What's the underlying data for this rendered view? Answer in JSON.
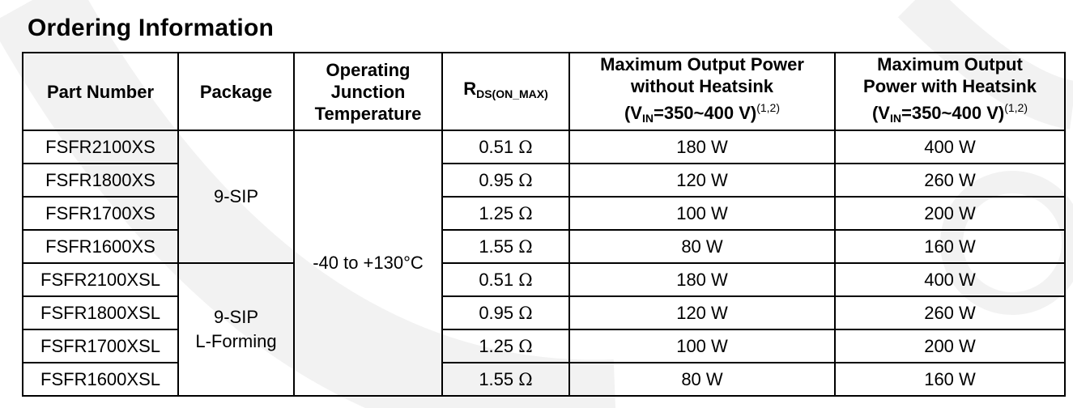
{
  "title": "Ordering Information",
  "columns": {
    "part_number": "Part Number",
    "package": "Package",
    "temperature": [
      "Operating",
      "Junction",
      "Temperature"
    ],
    "rds": {
      "main": "R",
      "sub": "DS(ON_MAX)"
    },
    "power_no_heatsink": {
      "line1": "Maximum Output Power",
      "line2": "without Heatsink",
      "vin_open": "(V",
      "vin_sub": "IN",
      "vin_rest": "=350~400 V)",
      "note": "(1,2)"
    },
    "power_heatsink": {
      "line1": "Maximum Output",
      "line2": "Power with Heatsink",
      "vin_open": "(V",
      "vin_sub": "IN",
      "vin_rest": "=350~400 V)",
      "note": "(1,2)"
    }
  },
  "packages": [
    {
      "lines": [
        "9-SIP"
      ]
    },
    {
      "lines": [
        "9-SIP",
        "L-Forming"
      ]
    }
  ],
  "temperature_range": "-40 to +130°C",
  "rows": [
    {
      "part": "FSFR2100XS",
      "rds": "0.51",
      "unit": "Ω",
      "p_no_hs": "180 W",
      "p_hs": "400 W"
    },
    {
      "part": "FSFR1800XS",
      "rds": "0.95",
      "unit": "Ω",
      "p_no_hs": "120 W",
      "p_hs": "260 W"
    },
    {
      "part": "FSFR1700XS",
      "rds": "1.25",
      "unit": "Ω",
      "p_no_hs": "100 W",
      "p_hs": "200 W"
    },
    {
      "part": "FSFR1600XS",
      "rds": "1.55",
      "unit": "Ω",
      "p_no_hs": "80 W",
      "p_hs": "160 W"
    },
    {
      "part": "FSFR2100XSL",
      "rds": "0.51",
      "unit": "Ω",
      "p_no_hs": "180 W",
      "p_hs": "400 W"
    },
    {
      "part": "FSFR1800XSL",
      "rds": "0.95",
      "unit": "Ω",
      "p_no_hs": "120 W",
      "p_hs": "260 W"
    },
    {
      "part": "FSFR1700XSL",
      "rds": "1.25",
      "unit": "Ω",
      "p_no_hs": "100 W",
      "p_hs": "200 W"
    },
    {
      "part": "FSFR1600XSL",
      "rds": "1.55",
      "unit": "Ω",
      "p_no_hs": "80 W",
      "p_hs": "160 W"
    }
  ],
  "colors": {
    "watermark": "#f1f1f1",
    "text": "#000000",
    "border": "#000000"
  }
}
